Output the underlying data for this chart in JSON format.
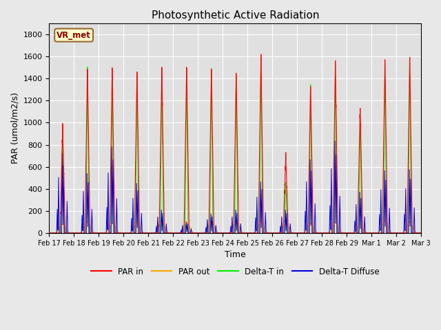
{
  "title": "Photosynthetic Active Radiation",
  "xlabel": "Time",
  "ylabel": "PAR (umol/m2/s)",
  "ylim": [
    0,
    1900
  ],
  "yticks": [
    0,
    200,
    400,
    600,
    800,
    1000,
    1200,
    1400,
    1600,
    1800
  ],
  "legend_label": "VR_met",
  "line_colors": {
    "PAR in": "#ff0000",
    "PAR out": "#ffa500",
    "Delta-T in": "#00ee00",
    "Delta-T Diffuse": "#0000dd"
  },
  "background_color": "#e8e8e8",
  "plot_bg_color": "#e0e0e0",
  "grid_color": "#ffffff",
  "n_days": 15,
  "ppd": 288,
  "x_labels": [
    "Feb 17",
    "Feb 18",
    "Feb 19",
    "Feb 20",
    "Feb 21",
    "Feb 22",
    "Feb 23",
    "Feb 24",
    "Feb 25",
    "Feb 26",
    "Feb 27",
    "Feb 28",
    "Feb 29",
    "Mar 1",
    "Mar 2",
    "Mar 3"
  ],
  "par_in_peaks": [
    970,
    1500,
    1480,
    1460,
    1500,
    1520,
    1500,
    1450,
    1620,
    700,
    1350,
    1540,
    1150,
    1570,
    1600
  ],
  "par_out_peaks": [
    80,
    100,
    100,
    100,
    110,
    105,
    105,
    110,
    110,
    90,
    90,
    95,
    75,
    115,
    100
  ],
  "delta_t_in_peaks": [
    900,
    1480,
    1420,
    1450,
    1490,
    1500,
    1480,
    1430,
    1590,
    450,
    1330,
    1530,
    1050,
    1530,
    1580
  ],
  "delta_t_diff_peaks": [
    720,
    540,
    780,
    450,
    210,
    100,
    175,
    210,
    465,
    210,
    665,
    835,
    370,
    565,
    575
  ]
}
